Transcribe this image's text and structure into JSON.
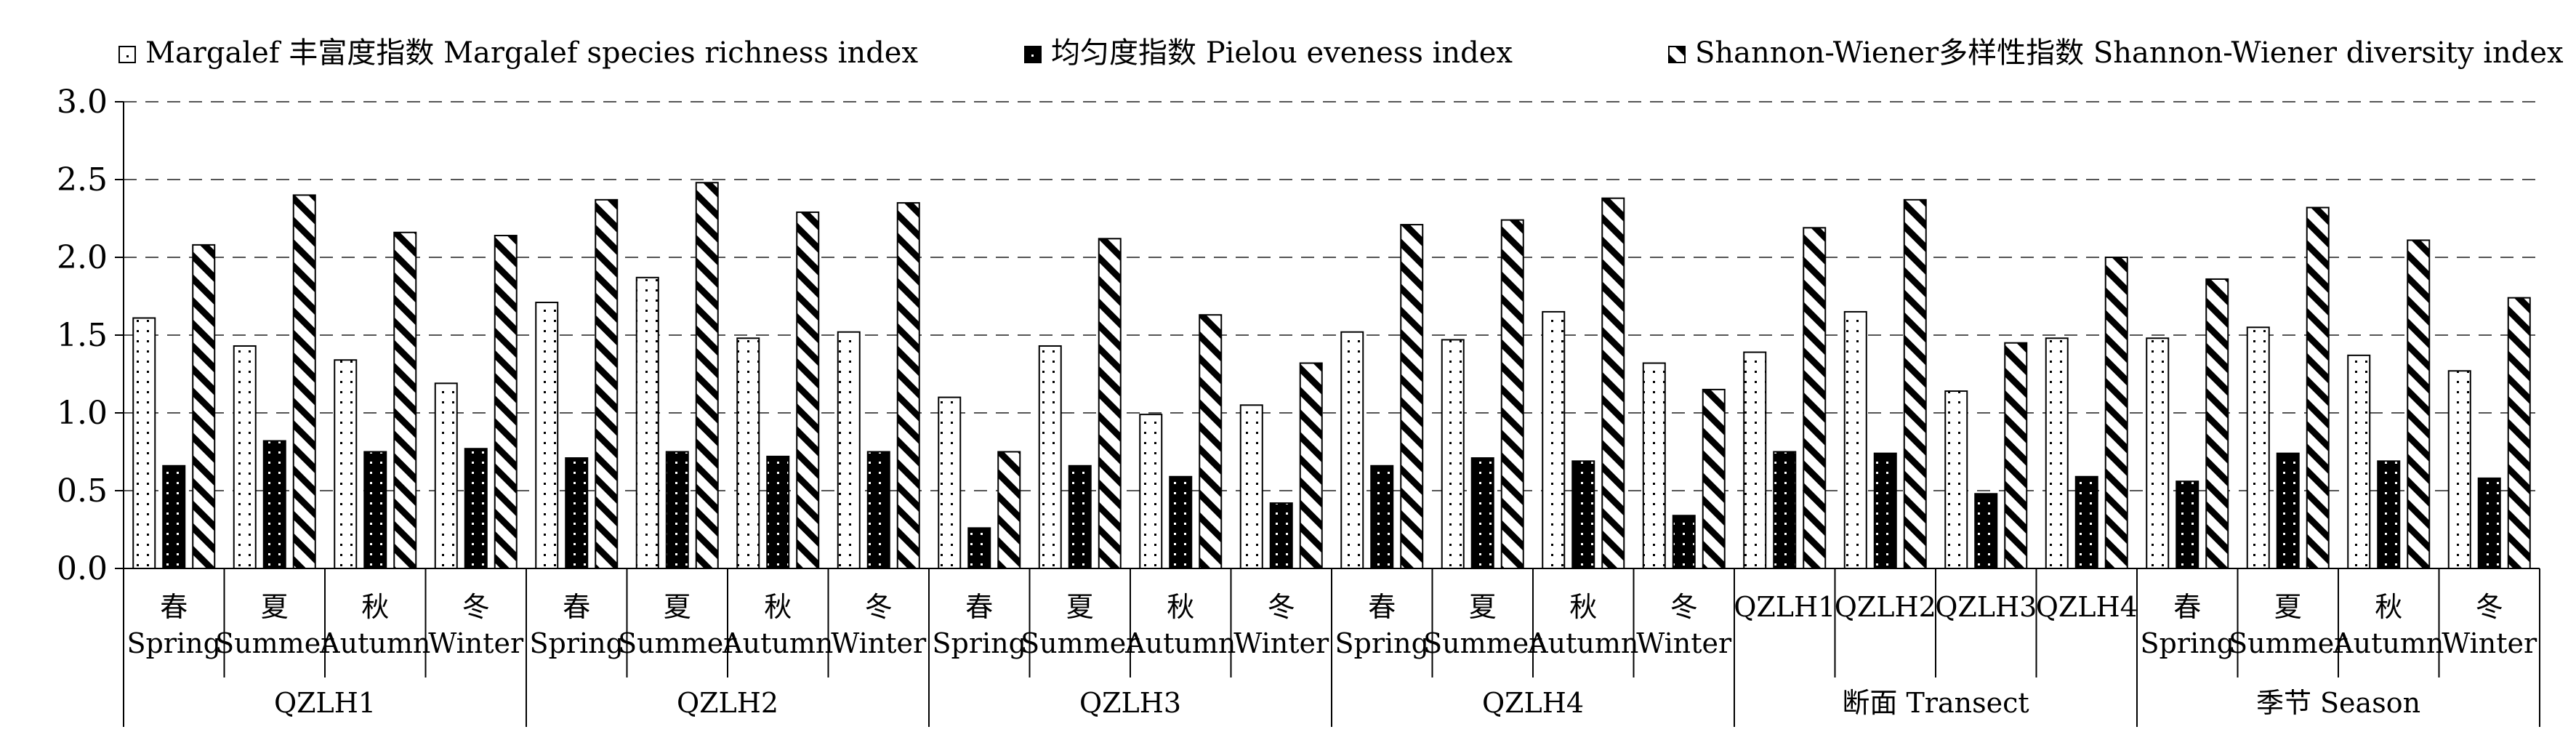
{
  "chart_data": {
    "type": "bar",
    "ylim": [
      0,
      3.0
    ],
    "yticks": [
      "0.0",
      "0.5",
      "1.0",
      "1.5",
      "2.0",
      "2.5",
      "3.0"
    ],
    "grid": "dashed horizontal",
    "legend_position": "top",
    "categories": [
      {
        "cn": "春",
        "en": "Spring"
      },
      {
        "cn": "夏",
        "en": "Summer"
      },
      {
        "cn": "秋",
        "en": "Autumn"
      },
      {
        "cn": "冬",
        "en": "Winter"
      },
      {
        "cn": "春",
        "en": "Spring"
      },
      {
        "cn": "夏",
        "en": "Summer"
      },
      {
        "cn": "秋",
        "en": "Autumn"
      },
      {
        "cn": "冬",
        "en": "Winter"
      },
      {
        "cn": "春",
        "en": "Spring"
      },
      {
        "cn": "夏",
        "en": "Summer"
      },
      {
        "cn": "秋",
        "en": "Autumn"
      },
      {
        "cn": "冬",
        "en": "Winter"
      },
      {
        "cn": "春",
        "en": "Spring"
      },
      {
        "cn": "夏",
        "en": "Summer"
      },
      {
        "cn": "秋",
        "en": "Autumn"
      },
      {
        "cn": "冬",
        "en": "Winter"
      },
      {
        "cn": "QZLH1",
        "en": ""
      },
      {
        "cn": "QZLH2",
        "en": ""
      },
      {
        "cn": "QZLH3",
        "en": ""
      },
      {
        "cn": "QZLH4",
        "en": ""
      },
      {
        "cn": "春",
        "en": "Spring"
      },
      {
        "cn": "夏",
        "en": "Summer"
      },
      {
        "cn": "秋",
        "en": "Autumn"
      },
      {
        "cn": "冬",
        "en": "Winter"
      }
    ],
    "groups": [
      {
        "label": "QZLH1",
        "size": 4
      },
      {
        "label": "QZLH2",
        "size": 4
      },
      {
        "label": "QZLH3",
        "size": 4
      },
      {
        "label": "QZLH4",
        "size": 4
      },
      {
        "label": "断面 Transect",
        "size": 4
      },
      {
        "label": "季节 Season",
        "size": 4
      }
    ],
    "series": [
      {
        "name": "Margalef 丰富度指数 Margalef species richness index",
        "pattern": "dots",
        "values": [
          1.61,
          1.43,
          1.34,
          1.19,
          1.71,
          1.87,
          1.48,
          1.52,
          1.1,
          1.43,
          0.99,
          1.05,
          1.52,
          1.47,
          1.65,
          1.32,
          1.39,
          1.65,
          1.14,
          1.48,
          1.48,
          1.55,
          1.37,
          1.27
        ]
      },
      {
        "name": "均匀度指数 Pielou eveness index",
        "pattern": "solid",
        "values": [
          0.66,
          0.82,
          0.75,
          0.77,
          0.71,
          0.75,
          0.72,
          0.75,
          0.26,
          0.66,
          0.59,
          0.42,
          0.66,
          0.71,
          0.69,
          0.34,
          0.75,
          0.74,
          0.48,
          0.59,
          0.56,
          0.74,
          0.69,
          0.58
        ]
      },
      {
        "name": "Shannon-Wiener多样性指数 Shannon-Wiener diversity index",
        "pattern": "diagonal",
        "values": [
          2.08,
          2.4,
          2.16,
          2.14,
          2.37,
          2.48,
          2.29,
          2.35,
          0.75,
          2.12,
          1.63,
          1.32,
          2.21,
          2.24,
          2.38,
          1.15,
          2.19,
          2.37,
          1.45,
          2.0,
          1.86,
          2.32,
          2.11,
          1.74
        ]
      }
    ]
  }
}
